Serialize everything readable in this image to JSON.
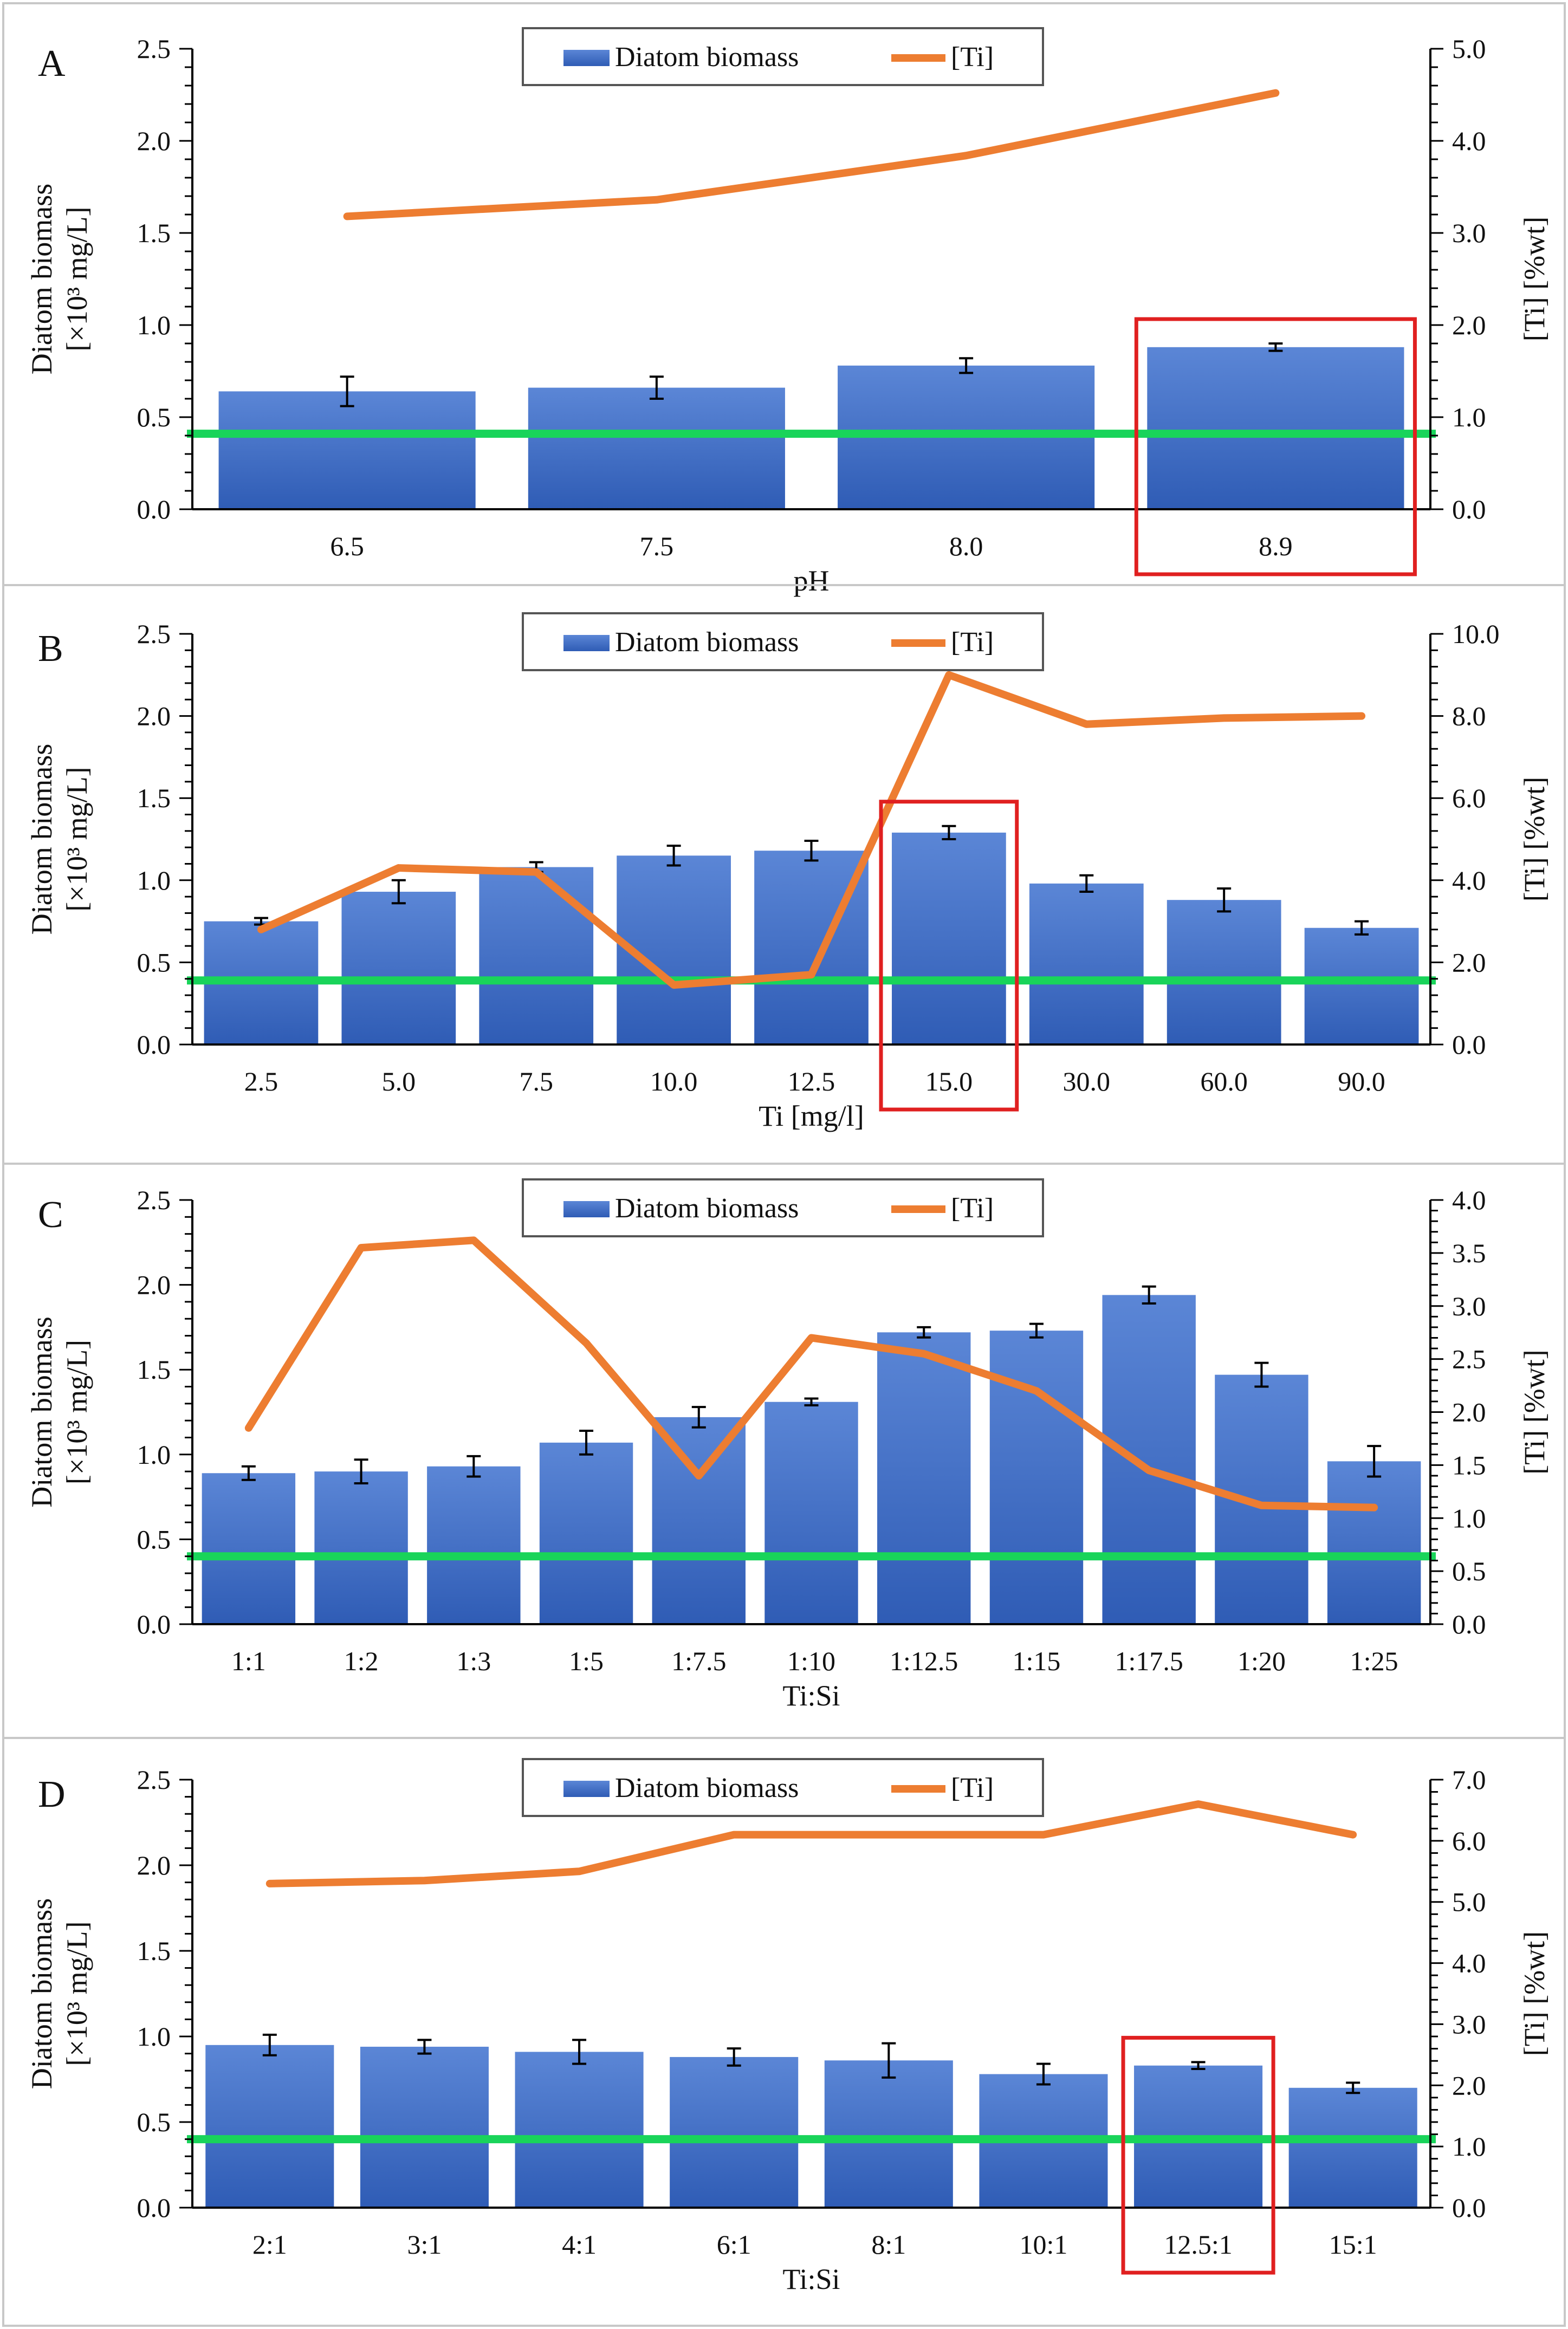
{
  "colors": {
    "bar": "#4472c4",
    "bar_top": "#5b86d6",
    "line": "#ed7d31",
    "threshold": "#19d45a",
    "highlight": "#e02020",
    "axis": "#000000"
  },
  "chart_data": [
    {
      "panel": "A",
      "type": "bar+line",
      "legend": [
        "Diatom biomass",
        "[Ti]"
      ],
      "xlabel": "pH",
      "ylabel_line1": "Diatom biomass",
      "ylabel_line2": "[×10³ mg/L]",
      "y2label": "[Ti] [%wt]",
      "ylim": [
        0,
        2.5
      ],
      "y2lim": [
        0,
        5.0
      ],
      "yticks": [
        "0.0",
        "0.5",
        "1.0",
        "1.5",
        "2.0",
        "2.5"
      ],
      "y2ticks": [
        "0.0",
        "1.0",
        "2.0",
        "3.0",
        "4.0",
        "5.0"
      ],
      "categories": [
        "6.5",
        "7.5",
        "8.0",
        "8.9"
      ],
      "bars": [
        0.64,
        0.66,
        0.78,
        0.88
      ],
      "errors": [
        0.08,
        0.06,
        0.04,
        0.02
      ],
      "ti": [
        3.18,
        3.36,
        3.84,
        4.52
      ],
      "threshold": 0.41,
      "highlight_index": 3,
      "highlight_includes_label": true
    },
    {
      "panel": "B",
      "type": "bar+line",
      "legend": [
        "Diatom biomass",
        "[Ti]"
      ],
      "xlabel": "Ti [mg/l]",
      "ylabel_line1": "Diatom biomass",
      "ylabel_line2": "[×10³ mg/L]",
      "y2label": "[Ti] [%wt]",
      "ylim": [
        0,
        2.5
      ],
      "y2lim": [
        0,
        10.0
      ],
      "yticks": [
        "0.0",
        "0.5",
        "1.0",
        "1.5",
        "2.0",
        "2.5"
      ],
      "y2ticks": [
        "0.0",
        "2.0",
        "4.0",
        "6.0",
        "8.0",
        "10.0"
      ],
      "categories": [
        "2.5",
        "5.0",
        "7.5",
        "10.0",
        "12.5",
        "15.0",
        "30.0",
        "60.0",
        "90.0"
      ],
      "bars": [
        0.75,
        0.93,
        1.08,
        1.15,
        1.18,
        1.29,
        0.98,
        0.88,
        0.71
      ],
      "errors": [
        0.02,
        0.07,
        0.03,
        0.06,
        0.06,
        0.04,
        0.05,
        0.07,
        0.04
      ],
      "ti": [
        2.8,
        4.3,
        4.2,
        1.45,
        1.7,
        9.0,
        7.8,
        7.95,
        8.0
      ],
      "threshold": 0.39,
      "highlight_index": 5,
      "highlight_includes_label": true
    },
    {
      "panel": "C",
      "type": "bar+line",
      "legend": [
        "Diatom biomass",
        "[Ti]"
      ],
      "xlabel": "Ti:Si",
      "ylabel_line1": "Diatom biomass",
      "ylabel_line2": "[×10³ mg/L]",
      "y2label": "[Ti] [%wt]",
      "ylim": [
        0,
        2.5
      ],
      "y2lim": [
        0,
        4.0
      ],
      "yticks": [
        "0.0",
        "0.5",
        "1.0",
        "1.5",
        "2.0",
        "2.5"
      ],
      "y2ticks": [
        "0.0",
        "0.5",
        "1.0",
        "1.5",
        "2.0",
        "2.5",
        "3.0",
        "3.5",
        "4.0"
      ],
      "categories": [
        "1:1",
        "1:2",
        "1:3",
        "1:5",
        "1:7.5",
        "1:10",
        "1:12.5",
        "1:15",
        "1:17.5",
        "1:20",
        "1:25"
      ],
      "bars": [
        0.89,
        0.9,
        0.93,
        1.07,
        1.22,
        1.31,
        1.72,
        1.73,
        1.94,
        1.47,
        0.96
      ],
      "errors": [
        0.04,
        0.07,
        0.06,
        0.07,
        0.06,
        0.02,
        0.03,
        0.04,
        0.05,
        0.07,
        0.09
      ],
      "ti": [
        1.85,
        3.55,
        3.62,
        2.65,
        1.4,
        2.7,
        2.55,
        2.2,
        1.45,
        1.12,
        1.1
      ],
      "threshold": 0.4,
      "highlight_index": -1,
      "highlight_includes_label": false
    },
    {
      "panel": "D",
      "type": "bar+line",
      "legend": [
        "Diatom biomass",
        "[Ti]"
      ],
      "xlabel": "Ti:Si",
      "ylabel_line1": "Diatom biomass",
      "ylabel_line2": "[×10³ mg/L]",
      "y2label": "[Ti] [%wt]",
      "ylim": [
        0,
        2.5
      ],
      "y2lim": [
        0,
        7.0
      ],
      "yticks": [
        "0.0",
        "0.5",
        "1.0",
        "1.5",
        "2.0",
        "2.5"
      ],
      "y2ticks": [
        "0.0",
        "1.0",
        "2.0",
        "3.0",
        "4.0",
        "5.0",
        "6.0",
        "7.0"
      ],
      "categories": [
        "2:1",
        "3:1",
        "4:1",
        "6:1",
        "8:1",
        "10:1",
        "12.5:1",
        "15:1"
      ],
      "bars": [
        0.95,
        0.94,
        0.91,
        0.88,
        0.86,
        0.78,
        0.83,
        0.7
      ],
      "errors": [
        0.06,
        0.04,
        0.07,
        0.05,
        0.1,
        0.06,
        0.02,
        0.03
      ],
      "ti": [
        5.3,
        5.35,
        5.5,
        6.1,
        6.1,
        6.1,
        6.6,
        6.1
      ],
      "threshold": 0.4,
      "highlight_index": 6,
      "highlight_includes_label": true
    }
  ]
}
